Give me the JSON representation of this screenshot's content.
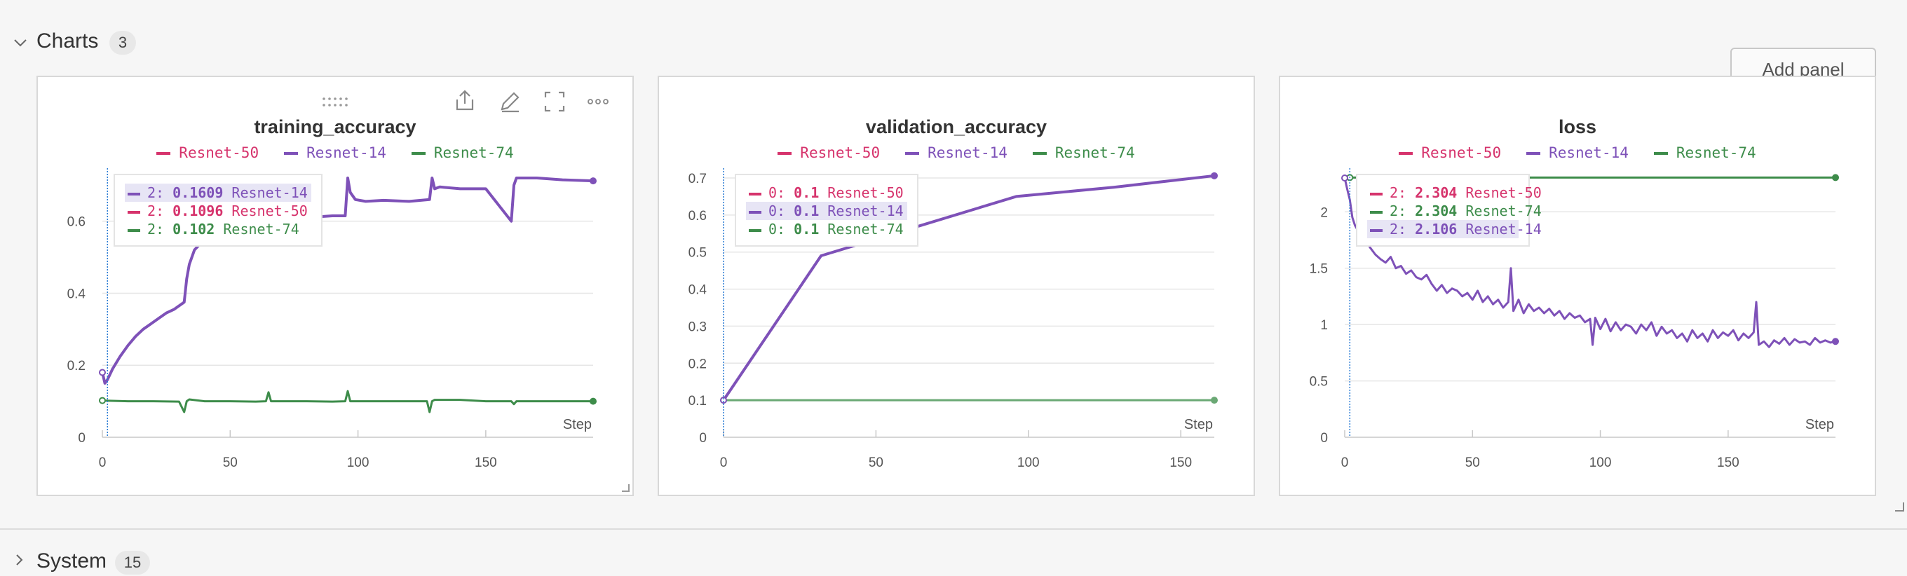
{
  "section": {
    "title": "Charts",
    "count": "3",
    "add_panel_label": "Add panel"
  },
  "section2": {
    "title": "System",
    "count": "15"
  },
  "colors": {
    "Resnet-50": "#d6336c",
    "Resnet-14": "#7e51b8",
    "Resnet-74": "#3d8c4a",
    "grid": "#e6e6e6",
    "axis": "#bdbdbd",
    "cursor": "#2a7bd4"
  },
  "toolbar_icons": [
    "drag-handle-icon",
    "share-icon",
    "edit-icon",
    "fullscreen-icon",
    "more-icon"
  ],
  "panels": [
    {
      "title": "training_accuracy",
      "legend": [
        {
          "name": "Resnet-50",
          "color": "#d6336c"
        },
        {
          "name": "Resnet-14",
          "color": "#7e51b8"
        },
        {
          "name": "Resnet-74",
          "color": "#3d8c4a"
        }
      ],
      "tooltip": [
        {
          "step": "2:",
          "value": "0.1609",
          "name": "Resnet-14",
          "color": "#7e51b8",
          "highlight": true
        },
        {
          "step": "2:",
          "value": "0.1096",
          "name": "Resnet-50",
          "color": "#d6336c",
          "highlight": false
        },
        {
          "step": "2:",
          "value": "0.102",
          "name": "Resnet-74",
          "color": "#3d8c4a",
          "highlight": false
        }
      ]
    },
    {
      "title": "validation_accuracy",
      "legend": [
        {
          "name": "Resnet-50",
          "color": "#d6336c"
        },
        {
          "name": "Resnet-14",
          "color": "#7e51b8"
        },
        {
          "name": "Resnet-74",
          "color": "#3d8c4a"
        }
      ],
      "tooltip": [
        {
          "step": "0:",
          "value": "0.1",
          "name": "Resnet-50",
          "color": "#d6336c",
          "highlight": false
        },
        {
          "step": "0:",
          "value": "0.1",
          "name": "Resnet-14",
          "color": "#7e51b8",
          "highlight": true
        },
        {
          "step": "0:",
          "value": "0.1",
          "name": "Resnet-74",
          "color": "#3d8c4a",
          "highlight": false
        }
      ]
    },
    {
      "title": "loss",
      "legend": [
        {
          "name": "Resnet-50",
          "color": "#d6336c"
        },
        {
          "name": "Resnet-14",
          "color": "#7e51b8"
        },
        {
          "name": "Resnet-74",
          "color": "#3d8c4a"
        }
      ],
      "tooltip": [
        {
          "step": "2:",
          "value": "2.304",
          "name": "Resnet-50",
          "color": "#d6336c",
          "highlight": false
        },
        {
          "step": "2:",
          "value": "2.304",
          "name": "Resnet-74",
          "color": "#3d8c4a",
          "highlight": false
        },
        {
          "step": "2:",
          "value": "2.106",
          "name": "Resnet-14",
          "color": "#7e51b8",
          "highlight": true
        }
      ]
    }
  ],
  "chart_data": [
    {
      "type": "line",
      "title": "training_accuracy",
      "xlabel": "Step",
      "ylabel": "",
      "xlim": [
        0,
        192
      ],
      "ylim": [
        0,
        0.72
      ],
      "xticks": [
        0,
        50,
        100,
        150
      ],
      "yticks": [
        {
          "v": 0,
          "label": "0"
        },
        {
          "v": 0.2,
          "label": "0.2"
        },
        {
          "v": 0.4,
          "label": "0.4"
        },
        {
          "v": 0.6,
          "label": "0.6"
        }
      ],
      "grid": true,
      "cursor_x": 2,
      "series": [
        {
          "name": "Resnet-14",
          "color": "#7e51b8",
          "width": 4,
          "x": [
            0,
            1,
            2,
            4,
            7,
            10,
            13,
            16,
            19,
            22,
            25,
            28,
            31,
            32,
            33,
            34,
            36,
            40,
            50,
            60,
            70,
            80,
            90,
            95,
            96,
            97,
            99,
            103,
            110,
            120,
            128,
            129,
            130,
            132,
            140,
            150,
            160,
            161,
            162,
            164,
            170,
            180,
            192
          ],
          "y": [
            0.18,
            0.15,
            0.16,
            0.19,
            0.225,
            0.255,
            0.28,
            0.3,
            0.315,
            0.33,
            0.345,
            0.355,
            0.37,
            0.375,
            0.44,
            0.48,
            0.52,
            0.55,
            0.58,
            0.6,
            0.605,
            0.61,
            0.615,
            0.615,
            0.72,
            0.68,
            0.66,
            0.655,
            0.658,
            0.655,
            0.66,
            0.72,
            0.69,
            0.695,
            0.69,
            0.69,
            0.6,
            0.7,
            0.72,
            0.72,
            0.72,
            0.715,
            0.712
          ]
        },
        {
          "name": "Resnet-74",
          "color": "#3d8c4a",
          "width": 3,
          "x": [
            0,
            10,
            20,
            30,
            32,
            33,
            34,
            40,
            50,
            60,
            64,
            65,
            66,
            70,
            80,
            90,
            95,
            96,
            97,
            100,
            110,
            120,
            127,
            128,
            129,
            130,
            140,
            150,
            160,
            161,
            162,
            170,
            180,
            192
          ],
          "y": [
            0.102,
            0.1,
            0.1,
            0.099,
            0.07,
            0.1,
            0.105,
            0.1,
            0.1,
            0.099,
            0.1,
            0.125,
            0.1,
            0.1,
            0.1,
            0.099,
            0.1,
            0.128,
            0.1,
            0.1,
            0.1,
            0.1,
            0.1,
            0.07,
            0.1,
            0.104,
            0.104,
            0.1,
            0.1,
            0.092,
            0.1,
            0.1,
            0.1,
            0.1
          ]
        }
      ]
    },
    {
      "type": "line",
      "title": "validation_accuracy",
      "xlabel": "Step",
      "ylabel": "",
      "xlim": [
        0,
        161
      ],
      "ylim": [
        0,
        0.7
      ],
      "xticks": [
        0,
        50,
        100,
        150
      ],
      "yticks": [
        {
          "v": 0,
          "label": "0"
        },
        {
          "v": 0.1,
          "label": "0.1"
        },
        {
          "v": 0.2,
          "label": "0.2"
        },
        {
          "v": 0.3,
          "label": "0.3"
        },
        {
          "v": 0.4,
          "label": "0.4"
        },
        {
          "v": 0.5,
          "label": "0.5"
        },
        {
          "v": 0.6,
          "label": "0.6"
        },
        {
          "v": 0.7,
          "label": "0.7"
        }
      ],
      "grid": true,
      "cursor_x": 0,
      "series": [
        {
          "name": "Resnet-74",
          "color": "#6aa874",
          "width": 3,
          "x": [
            0,
            161
          ],
          "y": [
            0.1,
            0.1
          ]
        },
        {
          "name": "Resnet-14",
          "color": "#7e51b8",
          "width": 4,
          "x": [
            0,
            32,
            64,
            96,
            128,
            161
          ],
          "y": [
            0.1,
            0.49,
            0.57,
            0.65,
            0.675,
            0.706
          ]
        }
      ]
    },
    {
      "type": "line",
      "title": "loss",
      "xlabel": "Step",
      "ylabel": "",
      "xlim": [
        0,
        192
      ],
      "ylim": [
        0,
        2.3
      ],
      "xticks": [
        0,
        50,
        100,
        150
      ],
      "yticks": [
        {
          "v": 0,
          "label": "0"
        },
        {
          "v": 0.5,
          "label": "0.5"
        },
        {
          "v": 1,
          "label": "1"
        },
        {
          "v": 1.5,
          "label": "1.5"
        },
        {
          "v": 2,
          "label": "2"
        }
      ],
      "grid": true,
      "cursor_x": 2,
      "series": [
        {
          "name": "Resnet-74",
          "color": "#3d8c4a",
          "width": 3,
          "x": [
            2,
            192
          ],
          "y": [
            2.304,
            2.304
          ]
        },
        {
          "name": "Resnet-14",
          "color": "#7e51b8",
          "width": 3,
          "x": [
            0,
            1,
            2,
            3,
            4,
            6,
            8,
            10,
            12,
            14,
            16,
            18,
            20,
            22,
            24,
            26,
            28,
            30,
            32,
            34,
            36,
            38,
            40,
            42,
            44,
            46,
            48,
            50,
            52,
            54,
            56,
            58,
            60,
            62,
            64,
            65,
            66,
            68,
            70,
            72,
            74,
            76,
            78,
            80,
            82,
            84,
            86,
            88,
            90,
            92,
            94,
            96,
            97,
            98,
            100,
            102,
            104,
            106,
            108,
            110,
            112,
            114,
            116,
            118,
            120,
            122,
            124,
            126,
            128,
            130,
            132,
            134,
            136,
            138,
            140,
            142,
            144,
            146,
            148,
            150,
            152,
            154,
            156,
            158,
            160,
            161,
            162,
            164,
            166,
            168,
            170,
            172,
            174,
            176,
            178,
            180,
            182,
            184,
            186,
            188,
            190,
            192
          ],
          "y": [
            2.3,
            2.2,
            2.106,
            1.95,
            1.88,
            1.8,
            1.75,
            1.68,
            1.62,
            1.58,
            1.55,
            1.6,
            1.5,
            1.52,
            1.45,
            1.48,
            1.42,
            1.4,
            1.44,
            1.36,
            1.3,
            1.35,
            1.28,
            1.32,
            1.3,
            1.25,
            1.28,
            1.22,
            1.3,
            1.2,
            1.25,
            1.18,
            1.22,
            1.15,
            1.2,
            1.5,
            1.12,
            1.22,
            1.1,
            1.18,
            1.12,
            1.15,
            1.1,
            1.14,
            1.08,
            1.12,
            1.05,
            1.1,
            1.06,
            1.08,
            1.02,
            1.05,
            0.82,
            1.06,
            0.96,
            1.05,
            0.94,
            1.02,
            0.95,
            1.0,
            0.98,
            0.92,
            1.0,
            0.95,
            1.02,
            0.9,
            0.98,
            0.92,
            0.95,
            0.88,
            0.92,
            0.85,
            0.95,
            0.88,
            0.92,
            0.85,
            0.95,
            0.88,
            0.93,
            0.9,
            0.95,
            0.86,
            0.92,
            0.88,
            0.93,
            1.2,
            0.82,
            0.85,
            0.8,
            0.86,
            0.83,
            0.88,
            0.82,
            0.87,
            0.84,
            0.85,
            0.82,
            0.88,
            0.84,
            0.86,
            0.84,
            0.85
          ]
        }
      ]
    }
  ]
}
